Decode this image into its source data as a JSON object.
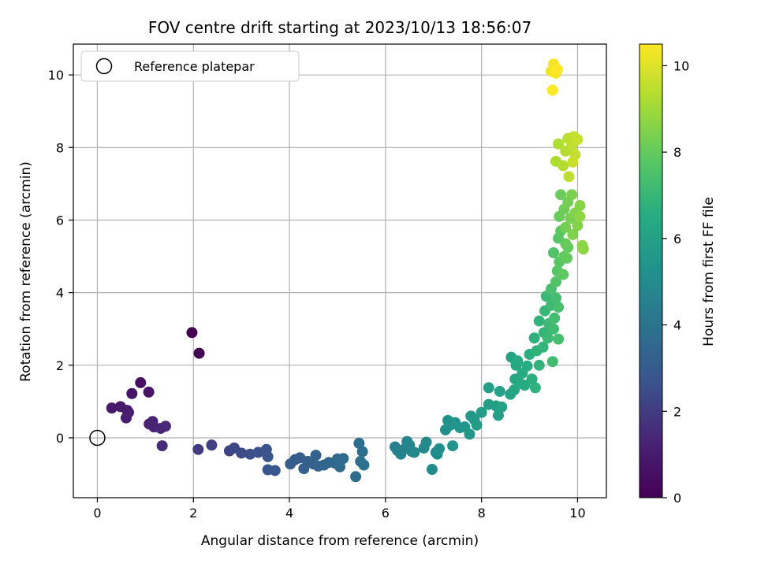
{
  "chart_data": {
    "type": "scatter",
    "title": "FOV centre drift starting at 2023/10/13 18:56:07",
    "xlabel": "Angular distance from reference (arcmin)",
    "ylabel": "Rotation from reference (arcmin)",
    "xlim": [
      -0.5,
      10.6
    ],
    "ylim": [
      -1.65,
      10.85
    ],
    "xticks": [
      0,
      2,
      4,
      6,
      8,
      10
    ],
    "yticks": [
      0,
      2,
      4,
      6,
      8,
      10
    ],
    "grid": true,
    "legend": {
      "placement": "upper-left",
      "entries": [
        "Reference platepar"
      ]
    },
    "reference_point": {
      "x": 0,
      "y": 0,
      "marker": "open-circle",
      "color": "#000000"
    },
    "colorbar": {
      "label": "Hours from first FF file",
      "min": 0,
      "max": 10.5,
      "ticks": [
        0,
        2,
        4,
        6,
        8,
        10
      ],
      "colormap": "viridis"
    },
    "points": [
      [
        1.97,
        2.9,
        0.0
      ],
      [
        2.12,
        2.33,
        0.05
      ],
      [
        0.9,
        1.52,
        0.6
      ],
      [
        0.72,
        1.22,
        0.7
      ],
      [
        1.07,
        1.26,
        0.8
      ],
      [
        0.3,
        0.82,
        0.9
      ],
      [
        0.48,
        0.86,
        0.95
      ],
      [
        0.62,
        0.76,
        1.0
      ],
      [
        0.65,
        0.7,
        1.05
      ],
      [
        0.6,
        0.55,
        1.1
      ],
      [
        1.08,
        0.38,
        1.2
      ],
      [
        1.15,
        0.45,
        1.25
      ],
      [
        1.18,
        0.3,
        1.3
      ],
      [
        1.32,
        0.26,
        1.4
      ],
      [
        1.42,
        0.32,
        1.45
      ],
      [
        1.35,
        -0.22,
        1.5
      ],
      [
        2.1,
        -0.32,
        2.0
      ],
      [
        2.38,
        -0.2,
        2.1
      ],
      [
        2.75,
        -0.36,
        2.2
      ],
      [
        2.85,
        -0.28,
        2.3
      ],
      [
        3.0,
        -0.42,
        2.4
      ],
      [
        3.18,
        -0.45,
        2.5
      ],
      [
        3.35,
        -0.4,
        2.6
      ],
      [
        3.52,
        -0.32,
        2.7
      ],
      [
        3.55,
        -0.52,
        2.75
      ],
      [
        3.55,
        -0.88,
        2.8
      ],
      [
        3.7,
        -0.9,
        2.85
      ],
      [
        4.02,
        -0.72,
        3.0
      ],
      [
        4.12,
        -0.6,
        3.05
      ],
      [
        4.22,
        -0.55,
        3.1
      ],
      [
        4.3,
        -0.85,
        3.15
      ],
      [
        4.38,
        -0.65,
        3.2
      ],
      [
        4.5,
        -0.72,
        3.25
      ],
      [
        4.55,
        -0.48,
        3.3
      ],
      [
        4.6,
        -0.78,
        3.35
      ],
      [
        4.72,
        -0.75,
        3.4
      ],
      [
        4.82,
        -0.68,
        3.45
      ],
      [
        4.95,
        -0.7,
        3.5
      ],
      [
        5.0,
        -0.58,
        3.55
      ],
      [
        5.05,
        -0.8,
        3.6
      ],
      [
        5.12,
        -0.57,
        3.65
      ],
      [
        5.38,
        -1.07,
        3.7
      ],
      [
        5.45,
        -0.15,
        3.75
      ],
      [
        5.48,
        -0.65,
        3.8
      ],
      [
        5.52,
        -0.38,
        3.85
      ],
      [
        5.55,
        -0.75,
        3.9
      ],
      [
        6.2,
        -0.25,
        4.5
      ],
      [
        6.25,
        -0.35,
        4.55
      ],
      [
        6.32,
        -0.45,
        4.6
      ],
      [
        6.4,
        -0.3,
        4.65
      ],
      [
        6.45,
        -0.1,
        4.7
      ],
      [
        6.5,
        -0.2,
        4.75
      ],
      [
        6.55,
        -0.38,
        4.8
      ],
      [
        6.6,
        -0.4,
        4.85
      ],
      [
        6.8,
        -0.28,
        4.9
      ],
      [
        6.85,
        -0.12,
        4.95
      ],
      [
        6.97,
        -0.87,
        5.0
      ],
      [
        7.05,
        -0.4,
        5.05
      ],
      [
        7.12,
        -0.3,
        5.1
      ],
      [
        7.08,
        -0.45,
        5.12
      ],
      [
        7.25,
        0.22,
        5.2
      ],
      [
        7.3,
        0.48,
        5.25
      ],
      [
        7.35,
        0.35,
        5.3
      ],
      [
        7.4,
        -0.22,
        5.35
      ],
      [
        7.45,
        0.42,
        5.4
      ],
      [
        7.55,
        0.28,
        5.45
      ],
      [
        7.65,
        0.3,
        5.5
      ],
      [
        7.75,
        0.1,
        5.55
      ],
      [
        7.78,
        0.6,
        5.6
      ],
      [
        7.85,
        0.5,
        5.65
      ],
      [
        7.9,
        0.35,
        5.7
      ],
      [
        8.0,
        0.7,
        5.75
      ],
      [
        8.15,
        0.92,
        5.8
      ],
      [
        8.15,
        1.38,
        5.85
      ],
      [
        8.3,
        0.88,
        5.9
      ],
      [
        8.35,
        0.62,
        5.95
      ],
      [
        8.38,
        1.28,
        6.0
      ],
      [
        8.42,
        0.85,
        6.05
      ],
      [
        8.6,
        1.2,
        6.1
      ],
      [
        8.62,
        2.22,
        6.15
      ],
      [
        8.68,
        1.32,
        6.2
      ],
      [
        8.7,
        1.62,
        6.25
      ],
      [
        8.72,
        2.0,
        6.3
      ],
      [
        8.75,
        2.12,
        6.35
      ],
      [
        8.8,
        1.5,
        6.4
      ],
      [
        8.85,
        1.78,
        6.45
      ],
      [
        8.9,
        1.45,
        6.5
      ],
      [
        8.95,
        1.98,
        6.55
      ],
      [
        9.0,
        2.3,
        6.6
      ],
      [
        9.05,
        1.62,
        6.65
      ],
      [
        9.1,
        2.75,
        6.7
      ],
      [
        9.12,
        1.38,
        6.75
      ],
      [
        9.15,
        2.4,
        6.8
      ],
      [
        9.2,
        3.22,
        6.85
      ],
      [
        9.2,
        2.0,
        6.88
      ],
      [
        9.28,
        2.5,
        6.92
      ],
      [
        9.3,
        2.9,
        6.96
      ],
      [
        9.32,
        3.5,
        7.0
      ],
      [
        9.35,
        3.9,
        7.05
      ],
      [
        9.38,
        2.75,
        7.08
      ],
      [
        9.4,
        3.15,
        7.12
      ],
      [
        9.45,
        3.65,
        7.16
      ],
      [
        9.48,
        2.1,
        7.2
      ],
      [
        9.5,
        3.0,
        7.24
      ],
      [
        9.52,
        3.3,
        7.28
      ],
      [
        9.55,
        3.85,
        7.32
      ],
      [
        9.6,
        2.72,
        7.36
      ],
      [
        9.6,
        3.6,
        7.4
      ],
      [
        9.45,
        4.1,
        7.45
      ],
      [
        9.5,
        5.1,
        7.6
      ],
      [
        9.55,
        4.3,
        7.65
      ],
      [
        9.58,
        4.6,
        7.7
      ],
      [
        9.6,
        5.5,
        7.75
      ],
      [
        9.62,
        4.85,
        7.8
      ],
      [
        9.65,
        5.7,
        7.85
      ],
      [
        9.7,
        4.5,
        7.9
      ],
      [
        9.72,
        5.0,
        7.95
      ],
      [
        9.75,
        5.35,
        8.0
      ],
      [
        9.78,
        4.95,
        8.02
      ],
      [
        9.8,
        5.25,
        8.05
      ],
      [
        9.62,
        6.1,
        8.1
      ],
      [
        9.65,
        6.7,
        8.15
      ],
      [
        9.72,
        6.3,
        8.2
      ],
      [
        9.75,
        5.8,
        8.25
      ],
      [
        9.8,
        6.5,
        8.3
      ],
      [
        9.85,
        6.05,
        8.35
      ],
      [
        9.88,
        6.7,
        8.4
      ],
      [
        9.9,
        5.6,
        8.45
      ],
      [
        9.95,
        6.2,
        8.5
      ],
      [
        10.0,
        5.85,
        8.55
      ],
      [
        10.05,
        6.4,
        8.6
      ],
      [
        10.1,
        5.3,
        8.65
      ],
      [
        10.12,
        5.2,
        8.7
      ],
      [
        10.05,
        6.1,
        8.72
      ],
      [
        9.55,
        7.62,
        9.2
      ],
      [
        9.6,
        8.1,
        9.25
      ],
      [
        9.7,
        7.5,
        9.3
      ],
      [
        9.75,
        7.9,
        9.35
      ],
      [
        9.8,
        8.25,
        9.4
      ],
      [
        9.82,
        7.2,
        9.45
      ],
      [
        9.88,
        8.05,
        9.5
      ],
      [
        9.92,
        8.3,
        9.55
      ],
      [
        9.95,
        7.8,
        9.6
      ],
      [
        10.0,
        8.22,
        9.65
      ],
      [
        9.9,
        7.6,
        9.7
      ],
      [
        9.45,
        10.1,
        10.3
      ],
      [
        9.5,
        10.3,
        10.35
      ],
      [
        9.55,
        10.05,
        10.4
      ],
      [
        9.48,
        9.58,
        10.45
      ],
      [
        9.58,
        10.15,
        10.5
      ]
    ]
  }
}
